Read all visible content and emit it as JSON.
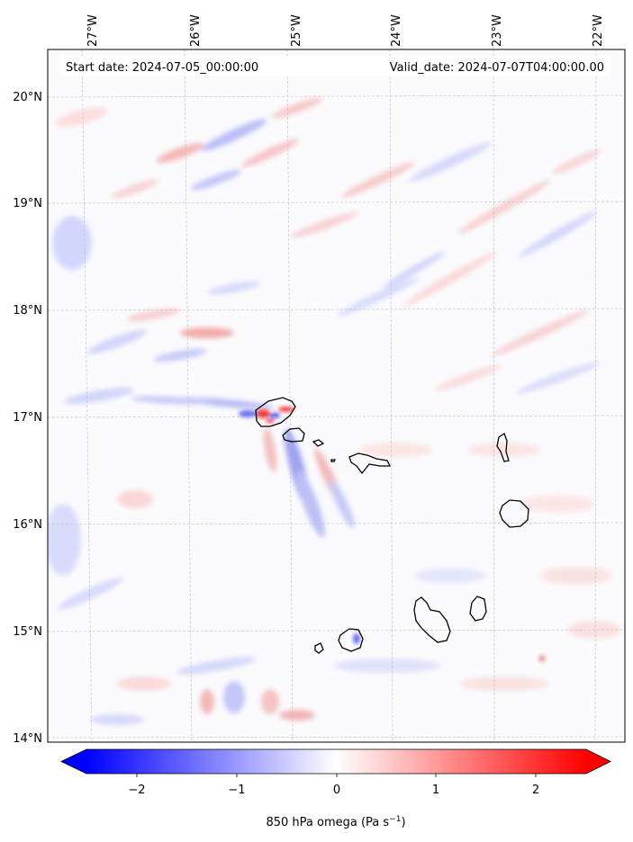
{
  "header": {
    "start_label": "Start date: 2024-07-05_00:00:00",
    "valid_label": "Valid_date: 2024-07-07T04:00:00.00"
  },
  "axes": {
    "lon_ticks": [
      "27°W",
      "26°W",
      "25°W",
      "24°W",
      "23°W",
      "22°W"
    ],
    "lat_ticks": [
      "20°N",
      "19°N",
      "18°N",
      "17°N",
      "16°N",
      "15°N",
      "14°N"
    ]
  },
  "colorbar": {
    "ticks": [
      "−2",
      "−1",
      "0",
      "1",
      "2"
    ],
    "label_main": "850 hPa omega (Pa s",
    "label_exp": "−1",
    "label_end": ")",
    "color_min": "#0000ff",
    "color_mid": "#ffffff",
    "color_max": "#ff0000"
  },
  "chart_data": {
    "type": "heatmap",
    "title": "",
    "variable": "850 hPa omega",
    "units": "Pa s−1",
    "color_scale": "bwr",
    "vmin": -2.5,
    "vmax": 2.5,
    "lon_range": [
      -27.2,
      -21.7
    ],
    "lat_range": [
      13.95,
      20.4
    ],
    "grid": true,
    "islands": [
      "Santo Antão",
      "São Vicente",
      "Santa Luzia",
      "Branco",
      "Raso",
      "São Nicolau",
      "Sal",
      "Boa Vista",
      "Maio",
      "Santiago",
      "Fogo",
      "Brava"
    ]
  }
}
